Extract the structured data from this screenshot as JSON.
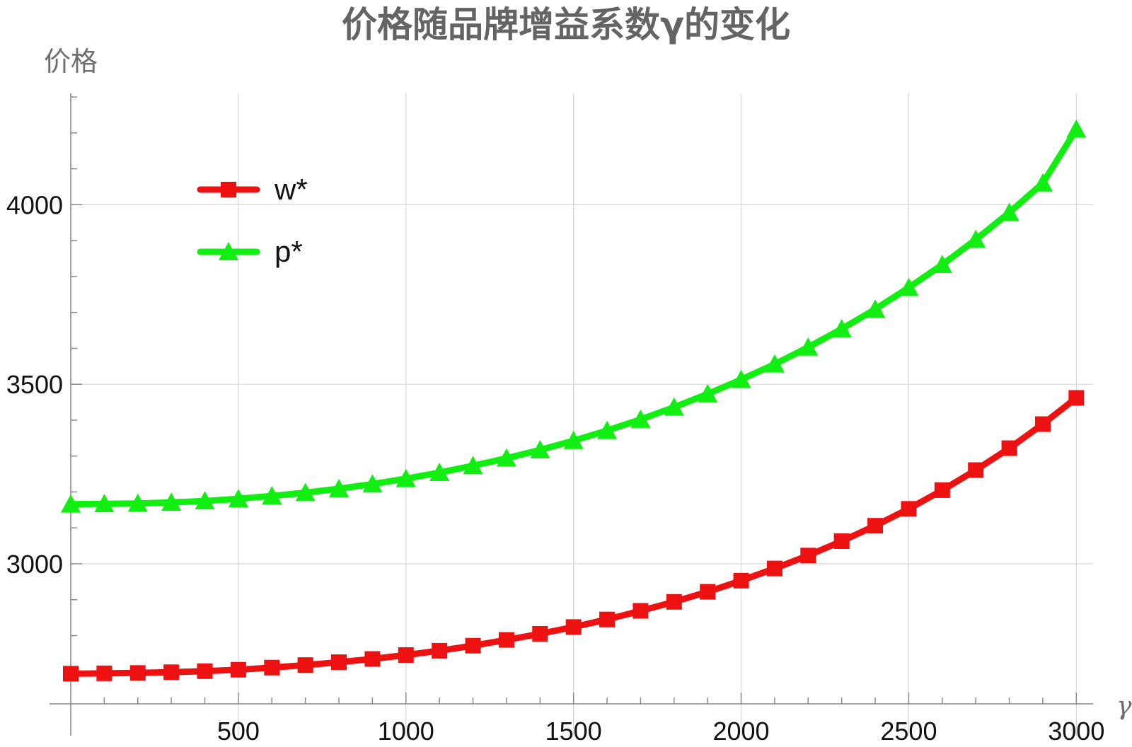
{
  "chart_data": {
    "type": "line",
    "title": "价格随品牌增益系数γ的变化",
    "xlabel": "γ",
    "ylabel": "价格",
    "xlim": [
      0,
      3050
    ],
    "ylim": [
      2610,
      4310
    ],
    "x_ticks": [
      500,
      1000,
      1500,
      2000,
      2500,
      3000
    ],
    "y_ticks": [
      3000,
      3500,
      4000
    ],
    "grid": true,
    "legend_position": "top-left",
    "x": [
      0,
      100,
      200,
      300,
      400,
      500,
      600,
      700,
      800,
      900,
      1000,
      1100,
      1200,
      1300,
      1400,
      1500,
      1600,
      1700,
      1800,
      1900,
      2000,
      2100,
      2200,
      2300,
      2400,
      2500,
      2600,
      2700,
      2800,
      2900,
      3000
    ],
    "series": [
      {
        "name": "w*",
        "color": "#ee1111",
        "marker": "square",
        "values": [
          2694,
          2695,
          2696,
          2698,
          2701,
          2705,
          2711,
          2718,
          2726,
          2735,
          2746,
          2758,
          2772,
          2788,
          2805,
          2824,
          2845,
          2869,
          2894,
          2922,
          2953,
          2987,
          3023,
          3063,
          3106,
          3153,
          3205,
          3261,
          3322,
          3389,
          3462
        ]
      },
      {
        "name": "p*",
        "color": "#11ee11",
        "marker": "triangle",
        "values": [
          3166,
          3167,
          3168,
          3171,
          3175,
          3181,
          3189,
          3198,
          3209,
          3222,
          3237,
          3254,
          3273,
          3294,
          3317,
          3343,
          3371,
          3402,
          3436,
          3473,
          3513,
          3556,
          3603,
          3654,
          3709,
          3769,
          3833,
          3903,
          3978,
          4060,
          4210
        ]
      }
    ]
  }
}
